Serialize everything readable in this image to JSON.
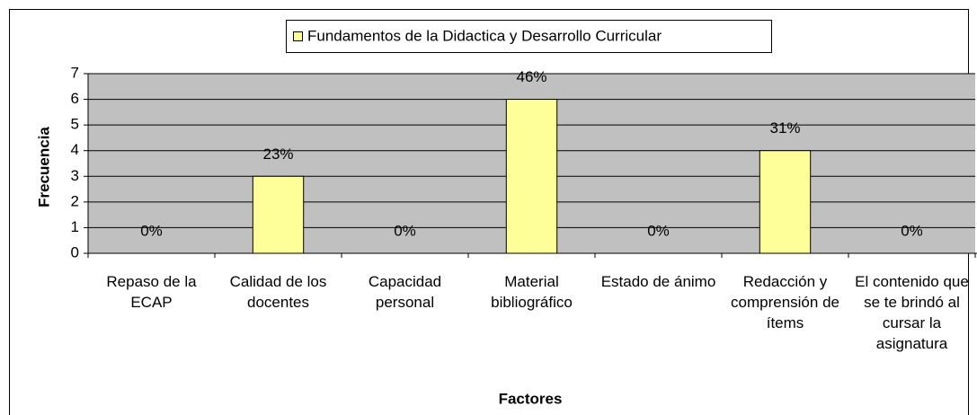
{
  "chart_data": {
    "type": "bar",
    "legend_label": "Fundamentos de la Didactica y Desarrollo Curricular",
    "x_label": "Factores",
    "y_label": "Frecuencia",
    "categories": [
      "Repaso de la ECAP",
      "Calidad de los docentes",
      "Capacidad personal",
      "Material bibliográfico",
      "Estado de ánimo",
      "Redacción y comprensión de ítems",
      "El contenido que se te brindó al cursar la asignatura"
    ],
    "values": [
      0,
      3,
      0,
      6,
      0,
      4,
      0
    ],
    "value_labels": [
      "0%",
      "23%",
      "0%",
      "46%",
      "0%",
      "31%",
      "0%"
    ],
    "color": "#ffff99",
    "plot_background": "#c0c0c0",
    "ylim": [
      0,
      7
    ],
    "yticks": [
      0,
      1,
      2,
      3,
      4,
      5,
      6,
      7
    ],
    "grid": true,
    "legend": "top"
  }
}
